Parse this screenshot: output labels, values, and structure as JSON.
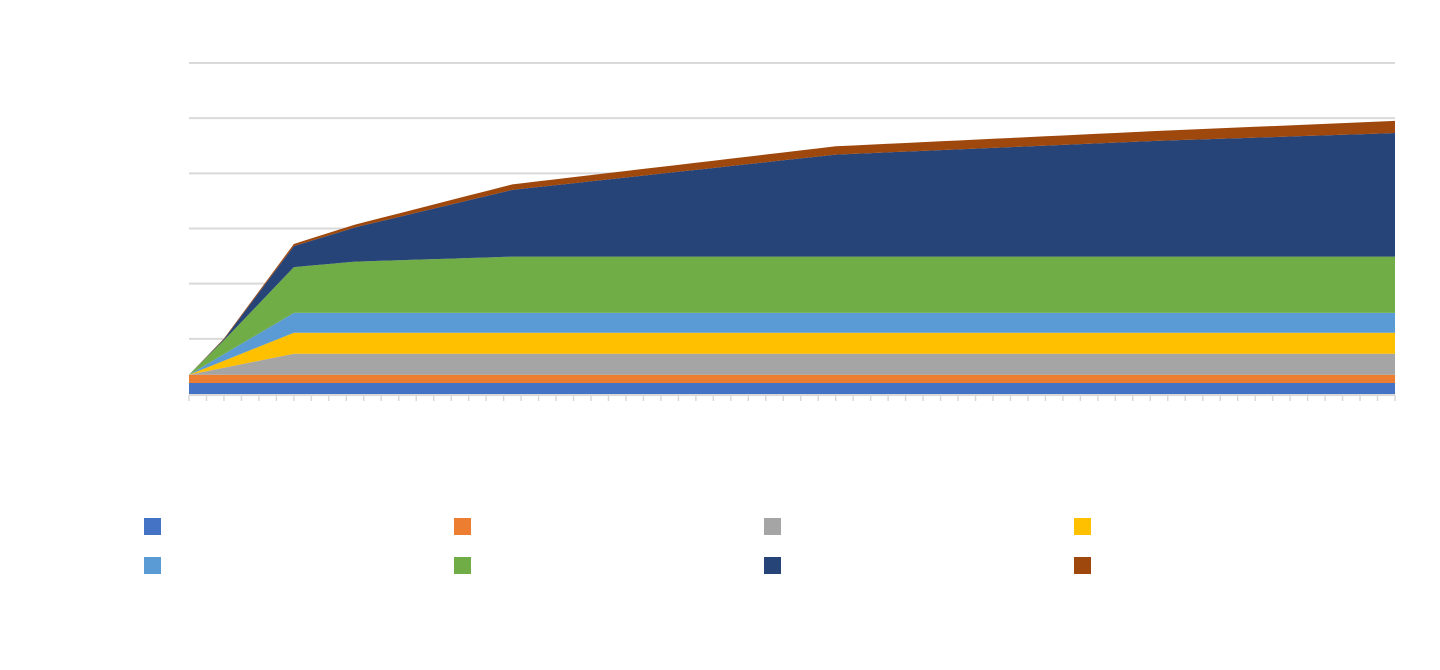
{
  "chart_data": {
    "type": "area",
    "stacked": true,
    "title": "",
    "xlabel": "",
    "ylabel": "",
    "grid": true,
    "legend_position": "bottom",
    "ylim": [
      0,
      60
    ],
    "x_count": 70,
    "series": [
      {
        "color": "#4472C4",
        "points": [
          [
            0,
            2
          ],
          [
            69,
            2
          ]
        ]
      },
      {
        "color": "#ED7D31",
        "points": [
          [
            0,
            1.5
          ],
          [
            69,
            1.5
          ]
        ]
      },
      {
        "color": "#A5A5A5",
        "points": [
          [
            0,
            0
          ],
          [
            6,
            3.8
          ],
          [
            69,
            3.8
          ]
        ]
      },
      {
        "color": "#FFC000",
        "points": [
          [
            0,
            0
          ],
          [
            6,
            3.8
          ],
          [
            69,
            3.8
          ]
        ]
      },
      {
        "color": "#5B9BD5",
        "points": [
          [
            0,
            0
          ],
          [
            6,
            3.6
          ],
          [
            69,
            3.6
          ]
        ]
      },
      {
        "color": "#70AD47",
        "points": [
          [
            0,
            0
          ],
          [
            2,
            2.5
          ],
          [
            6,
            8.3
          ],
          [
            9.5,
            9.3
          ],
          [
            18.5,
            10.2
          ],
          [
            69,
            10.2
          ]
        ]
      },
      {
        "color": "#264478",
        "points": [
          [
            0,
            0
          ],
          [
            2,
            0.2
          ],
          [
            6,
            3.8
          ],
          [
            9.5,
            6.2
          ],
          [
            18.5,
            12.1
          ],
          [
            37,
            18.5
          ],
          [
            55.5,
            21
          ],
          [
            69,
            22.4
          ]
        ]
      },
      {
        "color": "#9E480E",
        "points": [
          [
            0,
            0
          ],
          [
            6,
            0.4
          ],
          [
            9.5,
            0.5
          ],
          [
            18.5,
            1.0
          ],
          [
            37,
            1.5
          ],
          [
            55.5,
            1.8
          ],
          [
            69,
            2.2
          ]
        ]
      }
    ]
  }
}
